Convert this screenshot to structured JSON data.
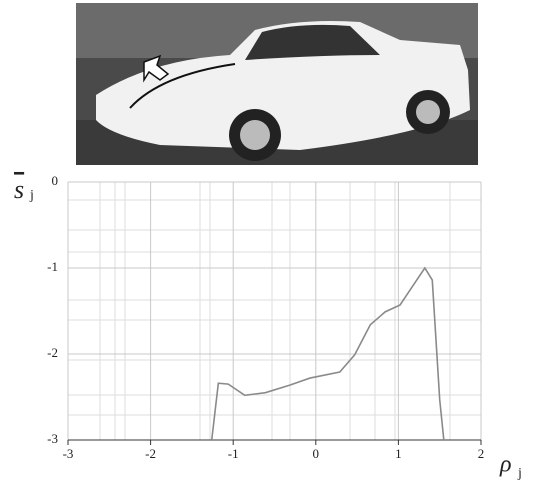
{
  "chart_data": {
    "type": "line",
    "xlabel": {
      "main": "ρ",
      "sub": "j"
    },
    "ylabel": {
      "main": "s",
      "sub": "j"
    },
    "series": [
      {
        "color": "#8a8a8a",
        "x": [
          -1.26,
          -1.18,
          -1.06,
          -0.86,
          -0.61,
          -0.31,
          -0.07,
          0.29,
          0.47,
          0.66,
          0.84,
          1.02,
          1.18,
          1.32,
          1.41,
          1.5,
          1.55
        ],
        "values": [
          -3,
          -2.34,
          -2.35,
          -2.48,
          -2.45,
          -2.36,
          -2.28,
          -2.21,
          -2.01,
          -1.66,
          -1.51,
          -1.43,
          -1.2,
          -1.0,
          -1.14,
          -2.53,
          -3
        ]
      }
    ],
    "xlim": [
      -3,
      2
    ],
    "xticks": [
      -3,
      -2,
      -1,
      0,
      1,
      2
    ],
    "ylim": [
      -3,
      0
    ],
    "yticks": [
      0,
      -1,
      -2,
      -3
    ],
    "grid": true
  }
}
